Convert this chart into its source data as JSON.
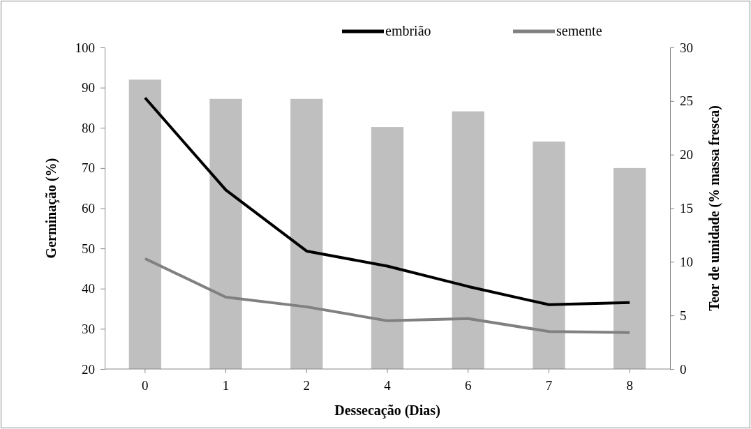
{
  "chart_data": {
    "type": "bar",
    "xlabel": "Dessecação (Dias)",
    "ylabel": "Germinação (%)",
    "y2label": "Teor de umidade (% massa fresca)",
    "categories": [
      "0",
      "1",
      "2",
      "4",
      "6",
      "7",
      "8"
    ],
    "ylim": [
      20,
      100
    ],
    "yticks": [
      20,
      30,
      40,
      50,
      60,
      70,
      80,
      90,
      100
    ],
    "y2lim": [
      0,
      30
    ],
    "y2ticks": [
      0,
      5,
      10,
      15,
      20,
      25,
      30
    ],
    "legend": "top right",
    "grid": false,
    "series": [
      {
        "color": "#bfbfbf",
        "values": [
          92.0,
          87.2,
          87.2,
          80.2,
          84.1,
          76.6,
          70.0
        ]
      },
      {
        "type": "line",
        "name": "embrião",
        "axis": "y2",
        "color": "#000000",
        "values": [
          25.3,
          16.7,
          11.0,
          9.6,
          7.7,
          6.0,
          6.2
        ]
      },
      {
        "type": "line",
        "name": "semente",
        "axis": "y2",
        "color": "#808080",
        "values": [
          10.3,
          6.7,
          5.8,
          4.5,
          4.7,
          3.5,
          3.4
        ]
      }
    ]
  }
}
